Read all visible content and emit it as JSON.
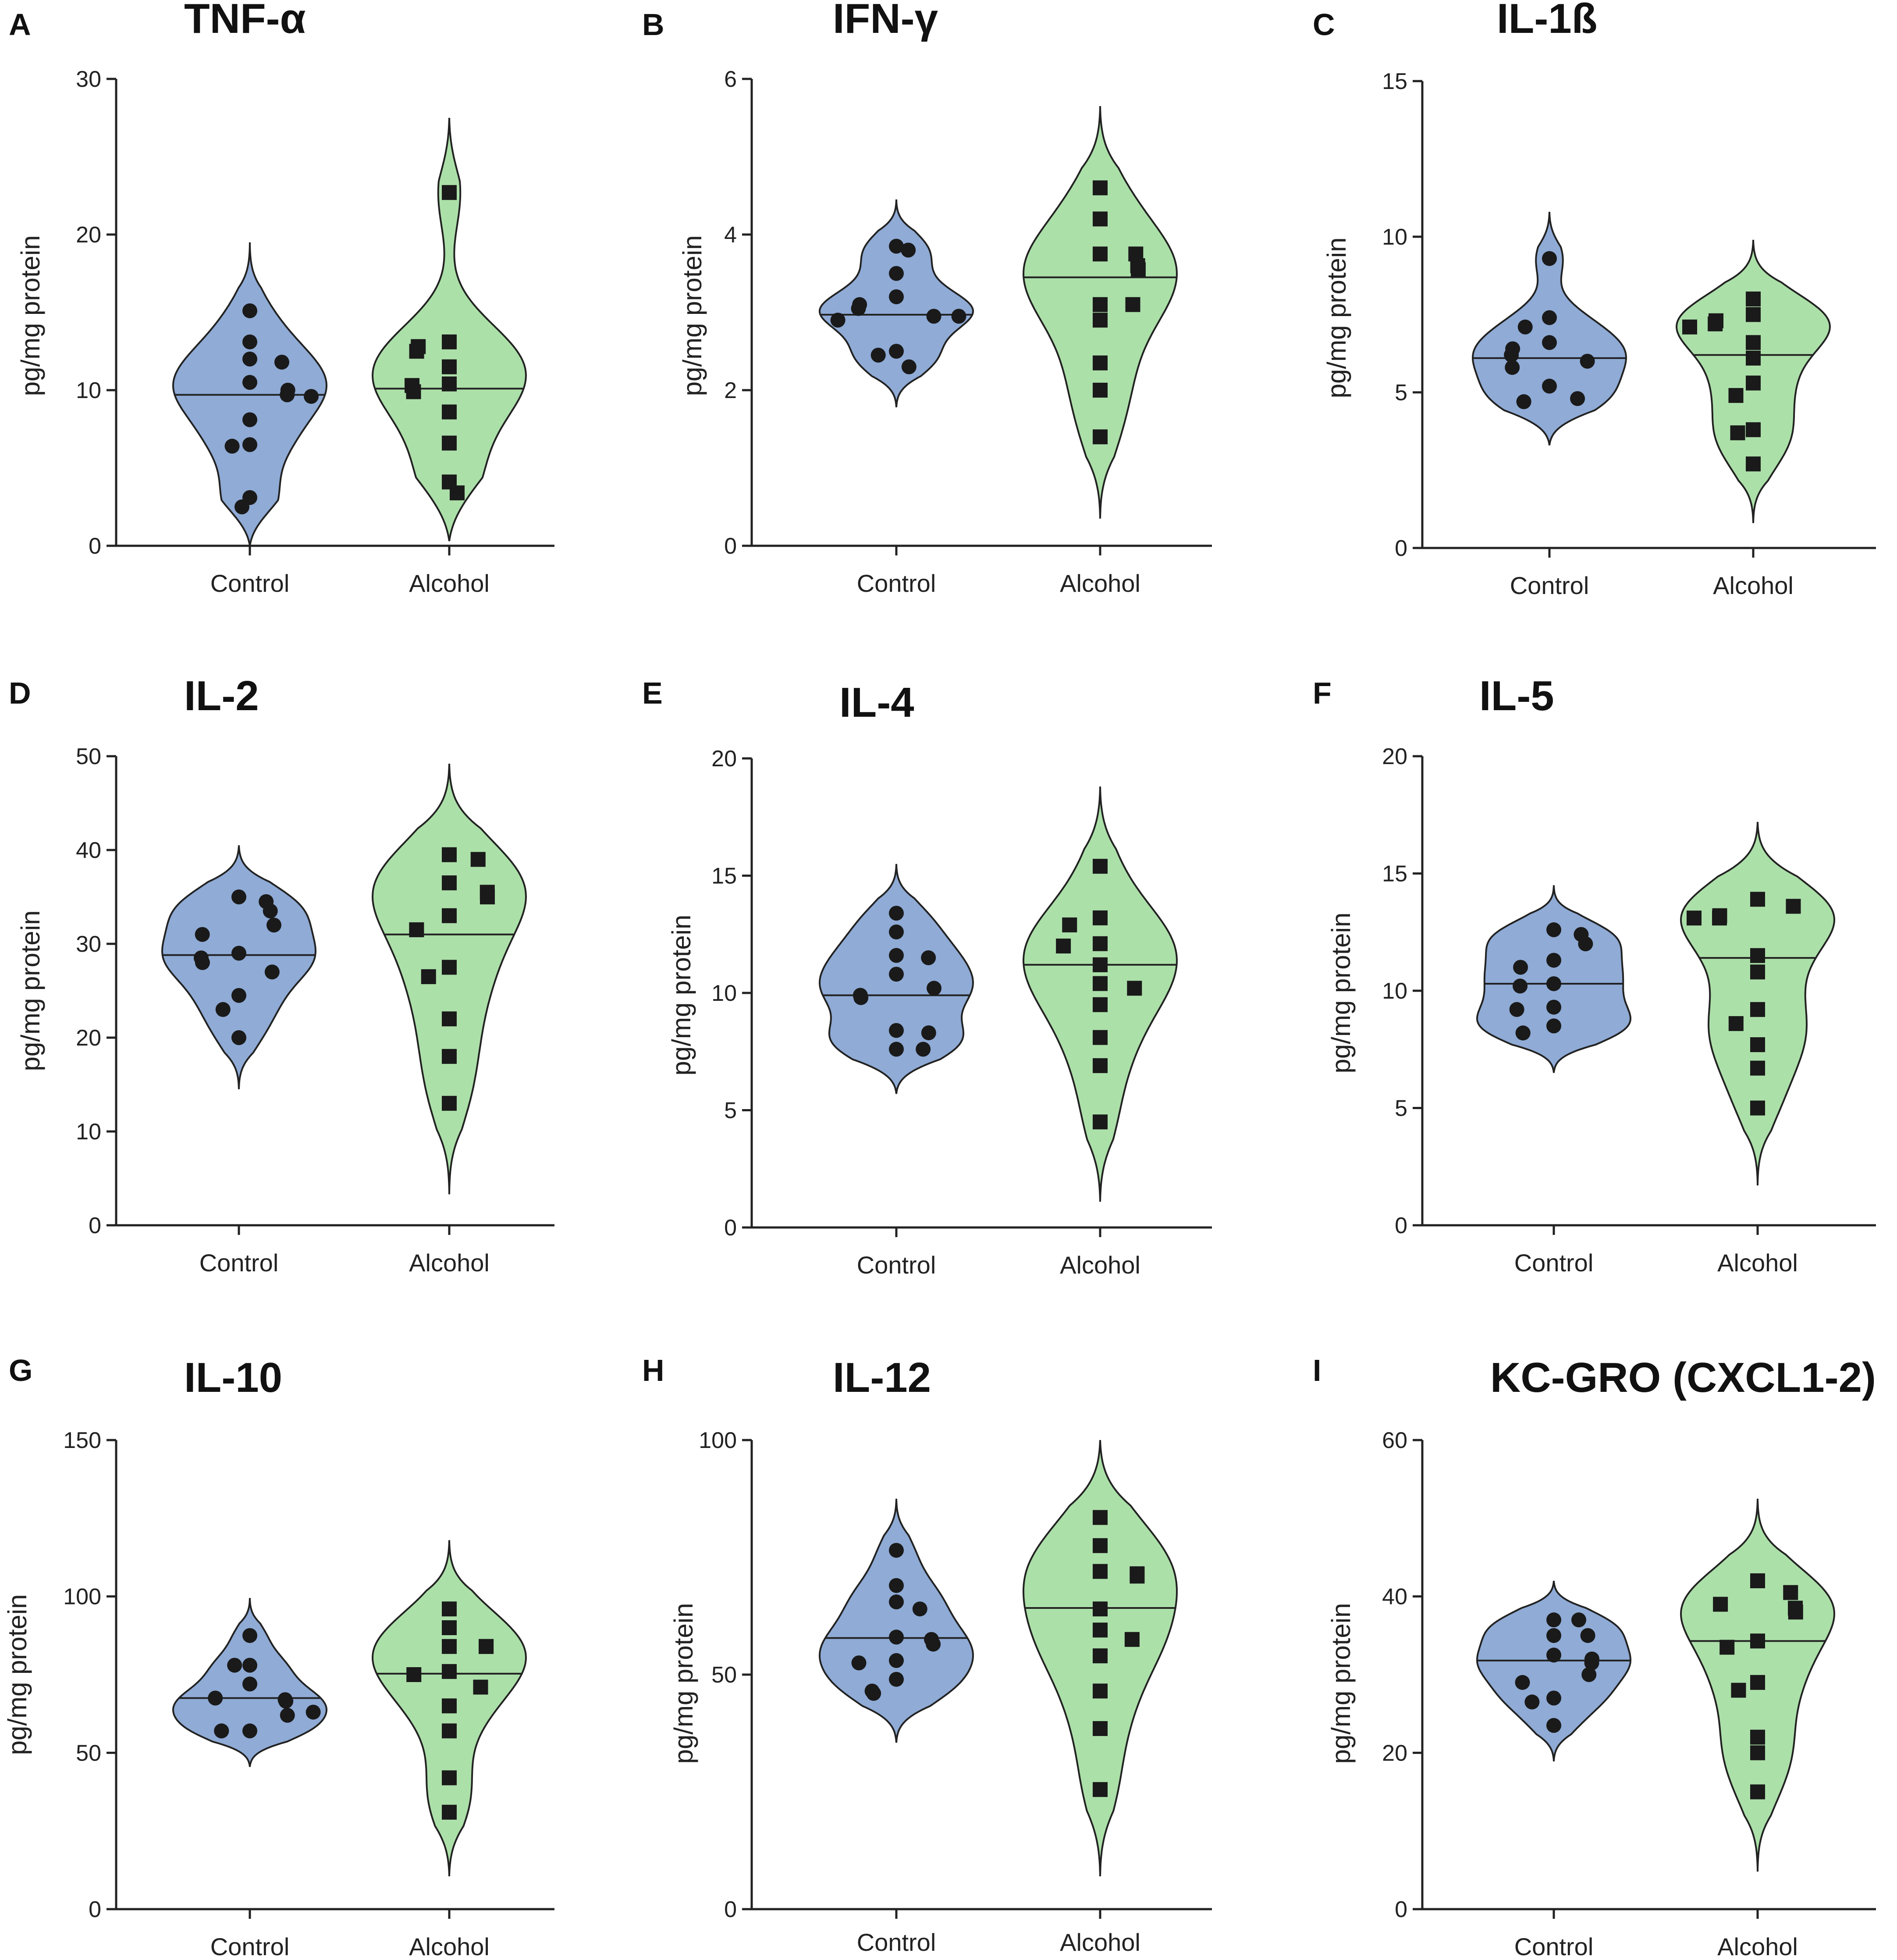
{
  "figure": {
    "y_axis_label": "pg/mg protein",
    "categories": [
      "Control",
      "Alcohol"
    ],
    "colors": {
      "control": "#8fabd6",
      "alcohol": "#ace0a9",
      "ink": "#1a1a1a"
    }
  },
  "chart_data": [
    {
      "type": "violin",
      "panel": "A",
      "title": "TNF-α",
      "ylabel": "pg/mg protein",
      "categories": [
        "Control",
        "Alcohol"
      ],
      "ylim": [
        0,
        30
      ],
      "yticks": [
        0,
        10,
        20,
        30
      ],
      "series": [
        {
          "name": "Control",
          "marker": "circle",
          "median": 9.7,
          "range": [
            0,
            19.5
          ],
          "values": [
            15.1,
            13.1,
            12.0,
            11.8,
            10.5,
            10.0,
            9.7,
            9.6,
            8.1,
            6.5,
            6.4,
            3.1,
            2.5
          ]
        },
        {
          "name": "Alcohol",
          "marker": "square",
          "median": 10.1,
          "range": [
            0.3,
            27.5
          ],
          "values": [
            22.7,
            13.1,
            12.8,
            12.5,
            11.5,
            10.4,
            10.3,
            9.9,
            8.6,
            6.6,
            4.1,
            3.4
          ]
        }
      ]
    },
    {
      "type": "violin",
      "panel": "B",
      "title": "IFN-γ",
      "ylabel": "pg/mg protein",
      "categories": [
        "Control",
        "Alcohol"
      ],
      "ylim": [
        0,
        6
      ],
      "yticks": [
        0,
        2,
        4,
        6
      ],
      "series": [
        {
          "name": "Control",
          "marker": "circle",
          "median": 2.97,
          "range": [
            1.78,
            4.45
          ],
          "values": [
            3.85,
            3.8,
            3.5,
            3.2,
            3.1,
            3.05,
            2.95,
            2.95,
            2.9,
            2.5,
            2.45,
            2.3
          ]
        },
        {
          "name": "Alcohol",
          "marker": "square",
          "median": 3.45,
          "range": [
            0.35,
            5.65
          ],
          "values": [
            4.6,
            4.2,
            3.75,
            3.75,
            3.6,
            3.55,
            3.1,
            3.1,
            2.9,
            2.35,
            2.0,
            1.4
          ]
        }
      ]
    },
    {
      "type": "violin",
      "panel": "C",
      "title": "IL-1ß",
      "ylabel": "pg/mg protein",
      "categories": [
        "Control",
        "Alcohol"
      ],
      "ylim": [
        0,
        15
      ],
      "yticks": [
        0,
        5,
        10,
        15
      ],
      "series": [
        {
          "name": "Control",
          "marker": "circle",
          "median": 6.1,
          "range": [
            3.3,
            10.8
          ],
          "values": [
            9.3,
            7.4,
            7.1,
            6.6,
            6.4,
            6.2,
            6.0,
            5.8,
            5.2,
            4.8,
            4.7,
            4.7
          ]
        },
        {
          "name": "Alcohol",
          "marker": "square",
          "median": 6.2,
          "range": [
            0.8,
            9.9
          ],
          "values": [
            8.0,
            7.5,
            7.3,
            7.2,
            7.1,
            6.6,
            6.1,
            5.3,
            4.9,
            3.8,
            3.7,
            2.7
          ]
        }
      ]
    },
    {
      "type": "violin",
      "panel": "D",
      "title": "IL-2",
      "ylabel": "pg/mg protein",
      "categories": [
        "Control",
        "Alcohol"
      ],
      "ylim": [
        0,
        50
      ],
      "yticks": [
        0,
        10,
        20,
        30,
        40,
        50
      ],
      "series": [
        {
          "name": "Control",
          "marker": "circle",
          "median": 28.8,
          "range": [
            14.5,
            40.5
          ],
          "values": [
            35.0,
            34.5,
            33.5,
            32.0,
            31.0,
            29.0,
            28.5,
            28.0,
            27.0,
            24.5,
            23.0,
            20.0
          ]
        },
        {
          "name": "Alcohol",
          "marker": "square",
          "median": 31.0,
          "range": [
            3.3,
            49.2
          ],
          "values": [
            39.5,
            39.0,
            36.5,
            35.5,
            35.0,
            33.0,
            31.5,
            27.5,
            26.5,
            22.0,
            18.0,
            13.0
          ]
        }
      ]
    },
    {
      "type": "violin",
      "panel": "E",
      "title": "IL-4",
      "ylabel": "pg/mg protein",
      "categories": [
        "Control",
        "Alcohol"
      ],
      "ylim": [
        0,
        20
      ],
      "yticks": [
        0,
        5,
        10,
        15,
        20
      ],
      "series": [
        {
          "name": "Control",
          "marker": "circle",
          "median": 9.9,
          "range": [
            5.7,
            15.5
          ],
          "values": [
            13.4,
            12.6,
            11.6,
            11.5,
            10.8,
            10.2,
            9.9,
            9.8,
            8.4,
            8.3,
            7.6,
            7.6
          ]
        },
        {
          "name": "Alcohol",
          "marker": "square",
          "median": 11.2,
          "range": [
            1.1,
            18.8
          ],
          "values": [
            15.4,
            13.2,
            12.9,
            12.1,
            12.0,
            11.2,
            10.4,
            10.2,
            9.5,
            8.1,
            6.9,
            4.5
          ]
        }
      ]
    },
    {
      "type": "violin",
      "panel": "F",
      "title": "IL-5",
      "ylabel": "pg/mg protein",
      "categories": [
        "Control",
        "Alcohol"
      ],
      "ylim": [
        0,
        20
      ],
      "yticks": [
        0,
        5,
        10,
        15,
        20
      ],
      "series": [
        {
          "name": "Control",
          "marker": "circle",
          "median": 10.3,
          "range": [
            6.5,
            14.5
          ],
          "values": [
            12.6,
            12.4,
            12.0,
            11.3,
            11.0,
            10.3,
            10.2,
            9.3,
            9.2,
            8.5,
            8.2,
            8.2
          ]
        },
        {
          "name": "Alcohol",
          "marker": "square",
          "median": 11.4,
          "range": [
            1.7,
            17.2
          ],
          "values": [
            13.9,
            13.6,
            13.2,
            13.1,
            13.1,
            11.5,
            10.8,
            9.2,
            8.6,
            7.7,
            6.7,
            5.0
          ]
        }
      ]
    },
    {
      "type": "violin",
      "panel": "G",
      "title": "IL-10",
      "ylabel": "pg/mg protein",
      "categories": [
        "Control",
        "Alcohol"
      ],
      "ylim": [
        0,
        150
      ],
      "yticks": [
        0,
        50,
        100,
        150
      ],
      "series": [
        {
          "name": "Control",
          "marker": "circle",
          "median": 67.5,
          "range": [
            45.5,
            99.5
          ],
          "values": [
            87.5,
            78.0,
            78.0,
            72.0,
            67.5,
            67.0,
            66.5,
            63.0,
            62.0,
            57.0,
            57.0,
            57.0
          ]
        },
        {
          "name": "Alcohol",
          "marker": "square",
          "median": 75.3,
          "range": [
            10.5,
            118.0
          ],
          "values": [
            96.0,
            90.0,
            84.0,
            84.0,
            84.0,
            76.0,
            75.0,
            71.0,
            65.0,
            57.0,
            42.0,
            31.0
          ]
        }
      ]
    },
    {
      "type": "violin",
      "panel": "H",
      "title": "IL-12",
      "ylabel": "pg/mg protein",
      "categories": [
        "Control",
        "Alcohol"
      ],
      "ylim": [
        0,
        100
      ],
      "yticks": [
        0,
        50,
        100
      ],
      "series": [
        {
          "name": "Control",
          "marker": "circle",
          "median": 57.8,
          "range": [
            35.5,
            87.5
          ],
          "values": [
            76.5,
            69.0,
            65.5,
            64.0,
            58.0,
            57.5,
            56.5,
            53.0,
            52.5,
            49.0,
            46.5,
            46.0
          ]
        },
        {
          "name": "Alcohol",
          "marker": "square",
          "median": 64.2,
          "range": [
            7.0,
            100.0
          ],
          "values": [
            83.5,
            77.5,
            72.0,
            71.5,
            71.0,
            64.0,
            59.5,
            57.5,
            54.0,
            46.5,
            38.5,
            25.5
          ]
        }
      ]
    },
    {
      "type": "violin",
      "panel": "I",
      "title": "KC-GRO (CXCL1-2)",
      "ylabel": "pg/mg protein",
      "categories": [
        "Control",
        "Alcohol"
      ],
      "ylim": [
        0,
        60
      ],
      "yticks": [
        0,
        20,
        40,
        60
      ],
      "series": [
        {
          "name": "Control",
          "marker": "circle",
          "median": 31.8,
          "range": [
            18.9,
            42.0
          ],
          "values": [
            37.0,
            37.0,
            35.0,
            35.0,
            32.5,
            32.0,
            31.5,
            30.0,
            29.0,
            27.0,
            26.5,
            23.5
          ]
        },
        {
          "name": "Alcohol",
          "marker": "square",
          "median": 34.3,
          "range": [
            4.8,
            52.5
          ],
          "values": [
            42.0,
            40.5,
            39.0,
            38.5,
            38.0,
            34.3,
            33.5,
            29.0,
            28.0,
            22.0,
            20.0,
            15.0
          ]
        }
      ]
    }
  ]
}
